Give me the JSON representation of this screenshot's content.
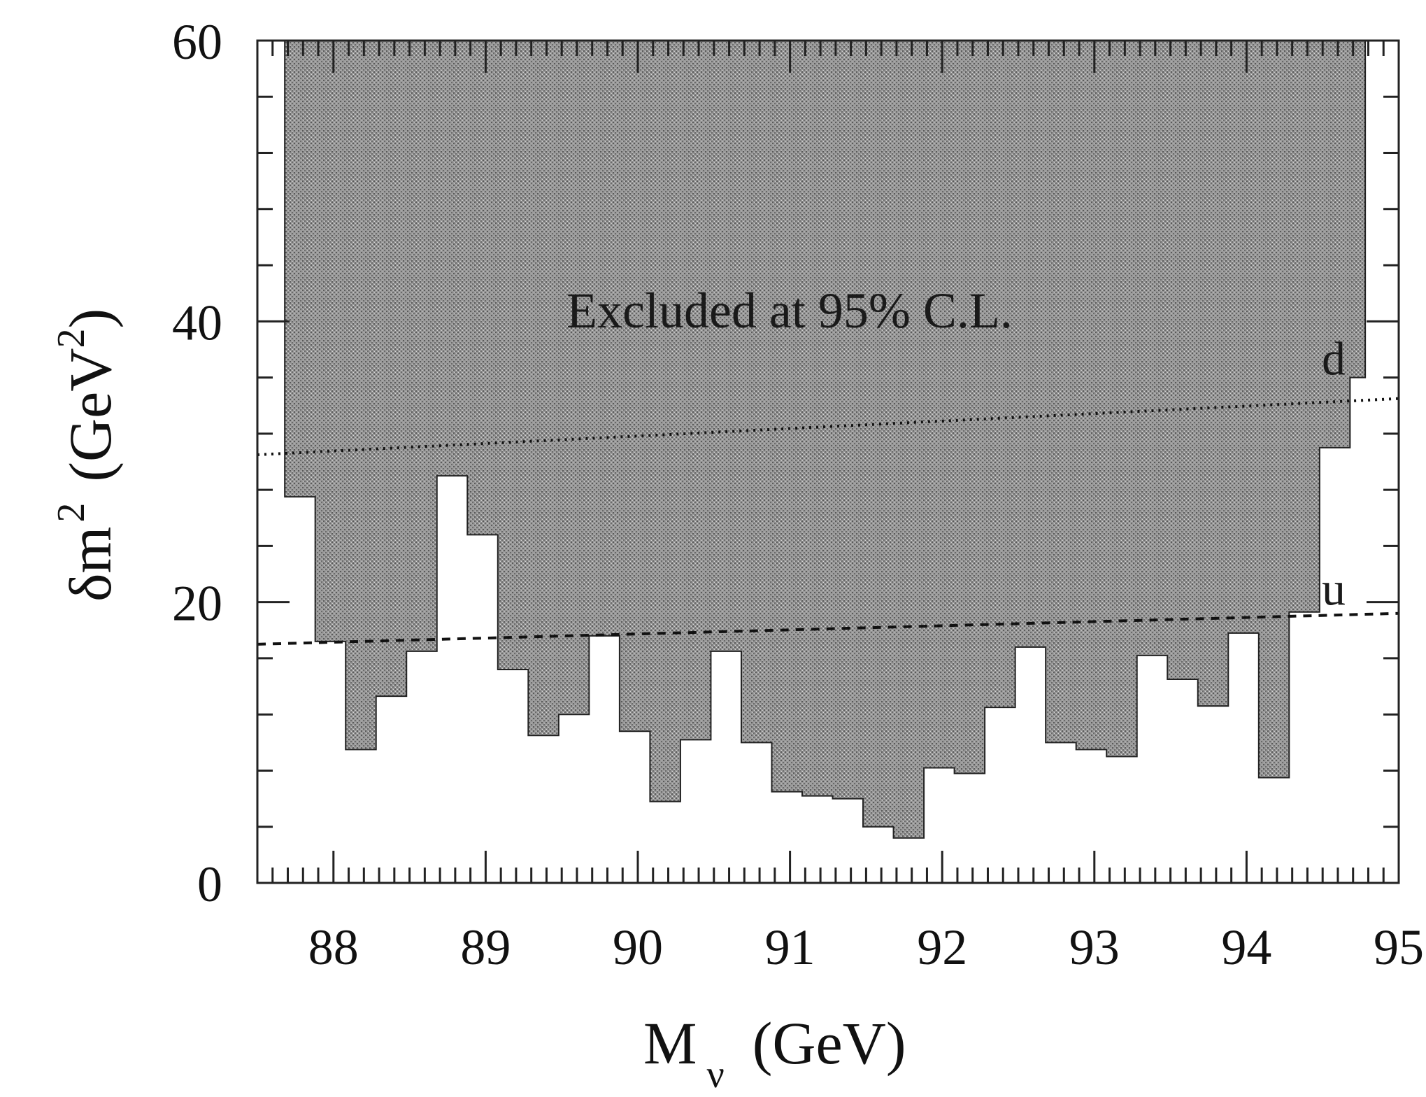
{
  "chart_data": {
    "type": "area",
    "xlabel": {
      "main": "M",
      "subscript": "ν",
      "units": "(GeV)"
    },
    "ylabel": {
      "main": "δm",
      "superscript": "2",
      "units_open": "(GeV",
      "units_sup": "2",
      "units_close": ")"
    },
    "xlim": [
      87.5,
      95
    ],
    "ylim": [
      0,
      60
    ],
    "xticks": [
      88,
      89,
      90,
      91,
      92,
      93,
      94,
      95
    ],
    "xtick_labels": [
      "88",
      "89",
      "90",
      "91",
      "92",
      "93",
      "94",
      "95"
    ],
    "yticks": [
      0,
      20,
      40,
      60
    ],
    "ytick_labels": [
      "0",
      "20",
      "40",
      "60"
    ],
    "grid": false,
    "excluded_region": {
      "label": "Excluded at 95% C.L.",
      "fill_color": "#8a8a8a",
      "top": 60,
      "lower_boundary": [
        [
          87.68,
          27.5
        ],
        [
          87.88,
          17.2
        ],
        [
          88.08,
          9.5
        ],
        [
          88.28,
          13.3
        ],
        [
          88.48,
          16.5
        ],
        [
          88.68,
          29.0
        ],
        [
          88.88,
          24.8
        ],
        [
          89.08,
          15.2
        ],
        [
          89.28,
          10.5
        ],
        [
          89.48,
          12.0
        ],
        [
          89.68,
          17.6
        ],
        [
          89.88,
          10.8
        ],
        [
          90.08,
          5.8
        ],
        [
          90.28,
          10.2
        ],
        [
          90.48,
          16.5
        ],
        [
          90.68,
          10.0
        ],
        [
          90.88,
          6.5
        ],
        [
          91.08,
          6.2
        ],
        [
          91.28,
          6.0
        ],
        [
          91.48,
          4.0
        ],
        [
          91.68,
          3.2
        ],
        [
          91.88,
          8.2
        ],
        [
          92.08,
          7.8
        ],
        [
          92.28,
          12.5
        ],
        [
          92.48,
          16.8
        ],
        [
          92.68,
          10.0
        ],
        [
          92.88,
          9.5
        ],
        [
          93.08,
          9.0
        ],
        [
          93.28,
          16.2
        ],
        [
          93.48,
          14.5
        ],
        [
          93.68,
          12.6
        ],
        [
          93.88,
          17.8
        ],
        [
          94.08,
          7.5
        ],
        [
          94.28,
          19.3
        ],
        [
          94.48,
          31.0
        ],
        [
          94.68,
          36.0
        ],
        [
          94.78,
          60.0
        ]
      ]
    },
    "series": [
      {
        "name": "d",
        "style": "dotted",
        "x": [
          87.5,
          95
        ],
        "y": [
          30.5,
          34.5
        ]
      },
      {
        "name": "u",
        "style": "dashed",
        "x": [
          87.5,
          95
        ],
        "y": [
          17.0,
          19.2
        ]
      }
    ]
  }
}
